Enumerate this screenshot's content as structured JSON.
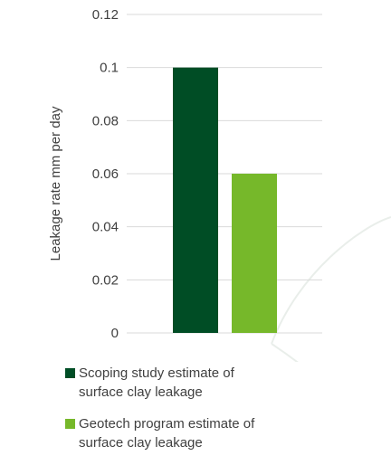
{
  "chart_data": {
    "type": "bar",
    "categories": [
      "Scoping study estimate of surface clay leakage",
      "Geotech program estimate of surface clay leakage"
    ],
    "values": [
      0.1,
      0.06
    ],
    "colors": [
      "#004d25",
      "#76b82a"
    ],
    "ylabel": "Leakage rate mm per day",
    "ylim": [
      0,
      0.12
    ],
    "yticks": [
      "0",
      "0.02",
      "0.04",
      "0.06",
      "0.08",
      "0.1",
      "0.12"
    ],
    "grid": true,
    "legend_position": "bottom"
  },
  "legend": [
    {
      "label": "Scoping study estimate of surface clay leakage",
      "color": "#004d25"
    },
    {
      "label": "Geotech program estimate of surface clay leakage",
      "color": "#76b82a"
    }
  ]
}
